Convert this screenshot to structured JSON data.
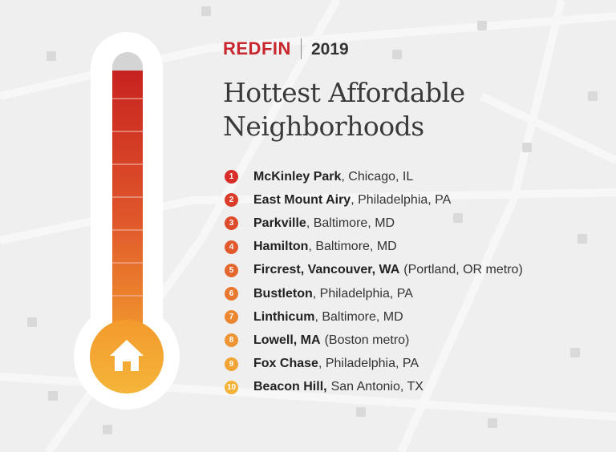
{
  "header": {
    "brand": "REDFIN",
    "year": "2019"
  },
  "title": [
    "Hottest Affordable",
    "Neighborhoods"
  ],
  "list": [
    {
      "rank": 1,
      "name": "McKinley Park",
      "location": ", Chicago, IL"
    },
    {
      "rank": 2,
      "name": "East Mount Airy",
      "location": ", Philadelphia, PA"
    },
    {
      "rank": 3,
      "name": "Parkville",
      "location": ", Baltimore, MD"
    },
    {
      "rank": 4,
      "name": "Hamilton",
      "location": ", Baltimore, MD"
    },
    {
      "rank": 5,
      "name": "Fircrest, Vancouver, WA",
      "location": "(Portland, OR metro)"
    },
    {
      "rank": 6,
      "name": "Bustleton",
      "location": ", Philadelphia, PA"
    },
    {
      "rank": 7,
      "name": "Linthicum",
      "location": ", Baltimore, MD"
    },
    {
      "rank": 8,
      "name": "Lowell, MA",
      "location": "(Boston metro)"
    },
    {
      "rank": 9,
      "name": "Fox Chase",
      "location": ", Philadelphia, PA"
    },
    {
      "rank": 10,
      "name": "Beacon Hill,",
      "location": "San Antonio, TX"
    }
  ]
}
